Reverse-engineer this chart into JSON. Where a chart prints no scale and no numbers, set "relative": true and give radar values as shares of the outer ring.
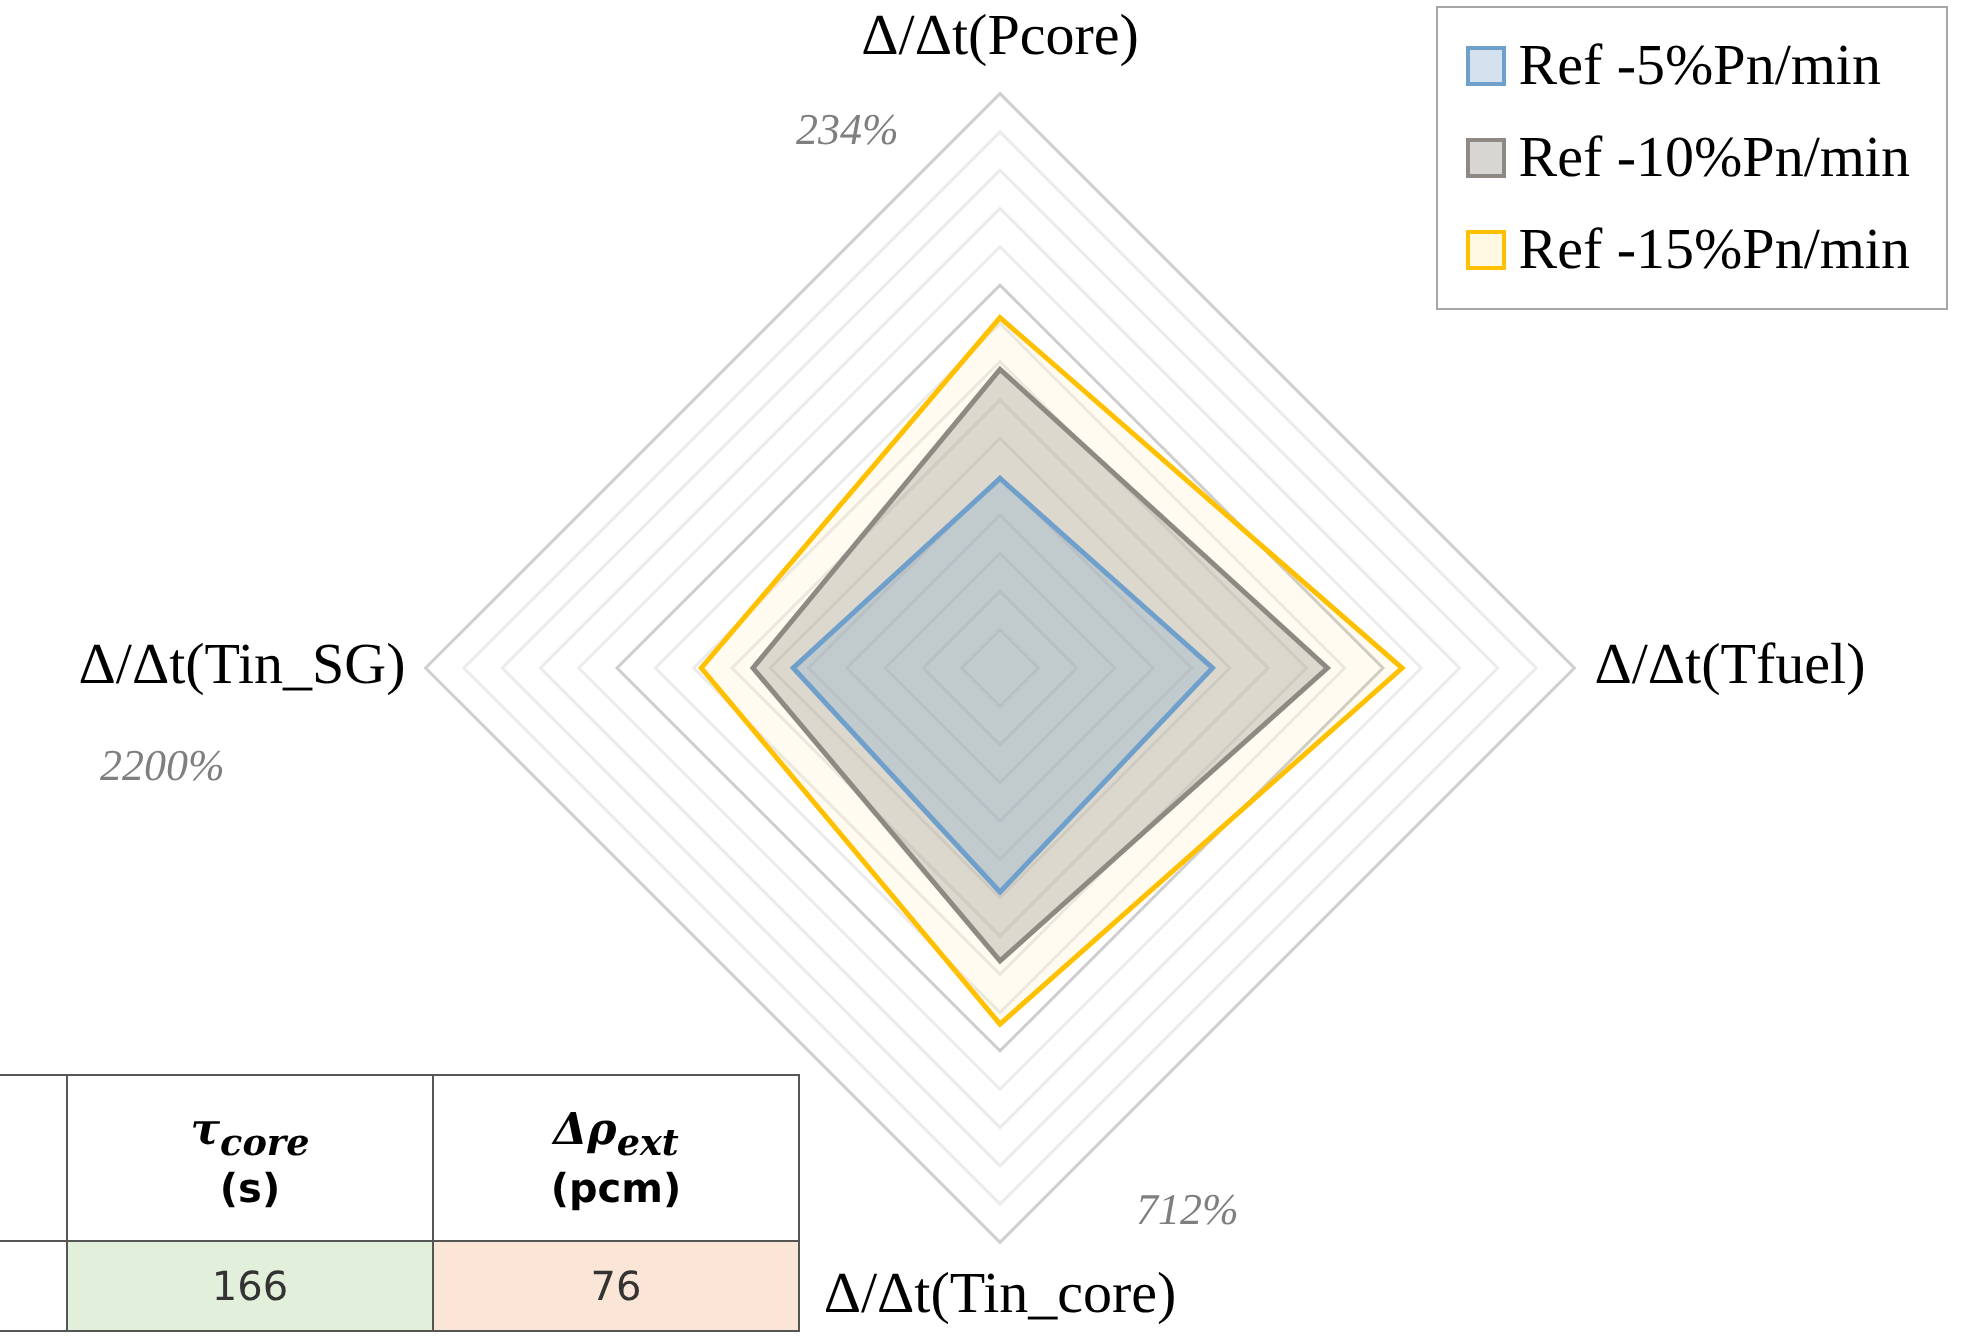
{
  "chart_data": {
    "type": "radar",
    "relative": true,
    "legend": "top right",
    "grid": true,
    "categories": [
      "Δ/Δt(Pcore)",
      "Δ/Δt(Tfuel)",
      "Δ/Δt(Tin_core)",
      "Δ/Δt(Tin_SG)"
    ],
    "series": [
      {
        "name": "Ref -5%Pn/min",
        "color": "#6f9fcb",
        "values": [
          0.33,
          0.37,
          0.39,
          0.36
        ]
      },
      {
        "name": "Ref -10%Pn/min",
        "color": "#8e8982",
        "values": [
          0.52,
          0.57,
          0.51,
          0.43
        ]
      },
      {
        "name": "Ref -15%Pn/min",
        "color": "#ffc000",
        "values": [
          0.61,
          0.7,
          0.62,
          0.52
        ]
      }
    ],
    "annotations": [
      "234%",
      "712%",
      "2200%",
      "τ$_{core}$",
      "(s)",
      "Δρ$_{ext}$",
      "(pcm)",
      "166",
      "76"
    ]
  }
}
